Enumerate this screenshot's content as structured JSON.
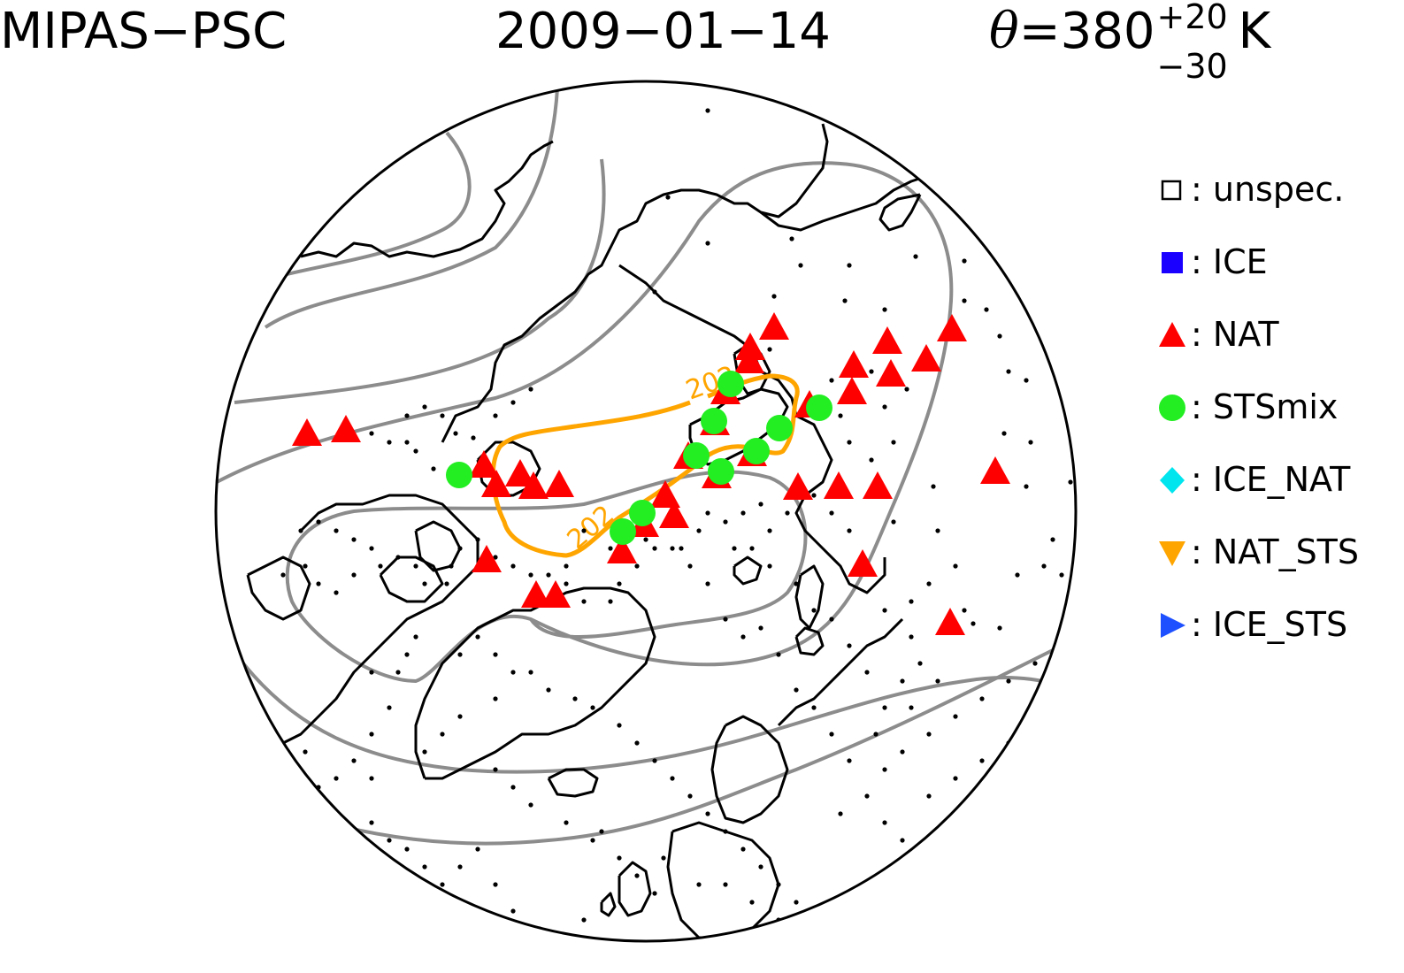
{
  "title": {
    "left": "MIPAS−PSC",
    "date": "2009−01−14",
    "theta_symbol": "θ",
    "theta_eq": "=380",
    "theta_sup": "+20",
    "theta_sub": "−30",
    "theta_unit": "K"
  },
  "contour_label": "202",
  "legend": [
    {
      "symbol": "square-open",
      "label": ": unspec.",
      "color": "#000000"
    },
    {
      "symbol": "square",
      "label": ": ICE",
      "color": "#1a00ff"
    },
    {
      "symbol": "triangle-up",
      "label": ": NAT",
      "color": "#ff0000"
    },
    {
      "symbol": "circle",
      "label": ": STSmix",
      "color": "#22ee22"
    },
    {
      "symbol": "diamond",
      "label": ": ICE_NAT",
      "color": "#00e5ee"
    },
    {
      "symbol": "triangle-down",
      "label": ": NAT_STS",
      "color": "#ffa500"
    },
    {
      "symbol": "triangle-right",
      "label": ": ICE_STS",
      "color": "#1e50ff"
    }
  ],
  "colors": {
    "coast": "#000000",
    "contour": "#8c8c8c",
    "contour_202": "#ffa500",
    "nat": "#ff0000",
    "stsmix": "#22ee22"
  }
}
